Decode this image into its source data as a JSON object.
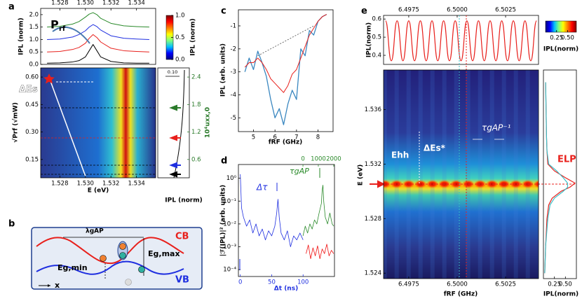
{
  "chart_data": [
    {
      "panel": "a",
      "type": "line",
      "ylabel": "IPL (norm)",
      "xlim": [
        1.5265,
        1.5355
      ],
      "xticks": [
        1.528,
        {
          "value": 1.53,
          "label": "1.530"
        },
        1.532,
        1.534
      ],
      "ylim": [
        0,
        2.25
      ],
      "yticks": [
        {
          "value": 0,
          "label": "0.0"
        },
        0.5,
        {
          "value": 1,
          "label": "1.0"
        },
        1.5,
        {
          "value": 2,
          "label": "2.0"
        }
      ],
      "x": [
        1.527,
        1.528,
        1.529,
        1.5295,
        1.53,
        1.5303,
        1.5306,
        1.5309,
        1.5312,
        1.532,
        1.533,
        1.534,
        1.535
      ],
      "series": [
        {
          "color": "#000000",
          "values": [
            0.05,
            0.06,
            0.1,
            0.15,
            0.3,
            0.55,
            0.8,
            0.55,
            0.3,
            0.12,
            0.06,
            0.05,
            0.05
          ]
        },
        {
          "color": "#e8201c",
          "values": [
            0.5,
            0.52,
            0.6,
            0.68,
            0.85,
            1.05,
            1.2,
            1.08,
            0.9,
            0.65,
            0.55,
            0.52,
            0.5
          ]
        },
        {
          "color": "#1f2fe0",
          "values": [
            1.0,
            1.02,
            1.1,
            1.2,
            1.35,
            1.5,
            1.6,
            1.52,
            1.38,
            1.15,
            1.05,
            1.02,
            1.0
          ]
        },
        {
          "color": "#2a8a2a",
          "values": [
            1.5,
            1.53,
            1.62,
            1.72,
            1.9,
            2.02,
            2.08,
            2.0,
            1.85,
            1.65,
            1.55,
            1.52,
            1.5
          ]
        }
      ],
      "annotation": "P",
      "annotation_sub": "rf"
    },
    {
      "panel": "a",
      "type": "heatmap",
      "xlabel": "E (eV)",
      "ylabel": "√Prf (√mW)",
      "y2label": "10⁴uxx,0",
      "xlim": [
        1.5265,
        1.5355
      ],
      "xticks": [
        1.528,
        {
          "value": 1.53,
          "label": "1.530"
        },
        1.532,
        1.534
      ],
      "ylim": [
        0.05,
        0.65
      ],
      "yticks": [
        0.15,
        {
          "value": 0.3,
          "label": "0.30"
        },
        0.45,
        {
          "value": 0.6,
          "label": "0.60"
        }
      ],
      "y2lim": [
        0.2,
        2.6
      ],
      "y2ticks": [
        0.6,
        1.2,
        1.8,
        2.4
      ],
      "y2color": "#2a7a2a",
      "colormap": [
        "#00007f",
        "#0000ff",
        "#00bfff",
        "#7fff7f",
        "#ffff00",
        "#ff7f00",
        "#ff0000",
        "#7f0000"
      ],
      "colorbar": {
        "label": "IPL (norm)",
        "lim": [
          0,
          1
        ],
        "ticks": [
          {
            "value": 0,
            "label": "0.0"
          },
          0.5,
          {
            "value": 1,
            "label": "1.0"
          }
        ]
      },
      "profile": {
        "xlabel": "IPL (norm)",
        "scale": {
          "value": 0.1,
          "label": "0.10"
        }
      },
      "annotation": "ΔEs"
    },
    {
      "panel": "b",
      "type": "diagram",
      "lambda": "λgAP",
      "cb": "CB",
      "vb": "VB",
      "egmax": "Eg,max",
      "egmin": "Eg,min",
      "x": "x"
    },
    {
      "panel": "c",
      "type": "line",
      "xlabel": "fRF (GHz)",
      "ylabel": "IPL (arb. units)",
      "xlim": [
        4.3,
        8.7
      ],
      "xticks": [
        5,
        6,
        7,
        8
      ],
      "ylim": [
        -5.6,
        -0.3
      ],
      "yticks": [
        -5,
        -4,
        -3,
        -2,
        -1
      ],
      "x": [
        4.6,
        4.8,
        5.0,
        5.2,
        5.4,
        5.6,
        5.8,
        6.0,
        6.2,
        6.4,
        6.6,
        6.8,
        7.0,
        7.2,
        7.4,
        7.6,
        7.8,
        8.0,
        8.2,
        8.4
      ],
      "series": [
        {
          "color": "#3a87c0",
          "values": [
            -3.0,
            -2.4,
            -2.9,
            -2.1,
            -2.6,
            -3.2,
            -4.2,
            -5.0,
            -4.6,
            -5.3,
            -4.4,
            -3.8,
            -4.2,
            -2.0,
            -2.3,
            -1.2,
            -1.4,
            -0.8,
            -0.6,
            -0.5
          ]
        },
        {
          "color": "#e8201c",
          "values": [
            -2.8,
            -2.6,
            -2.6,
            -2.4,
            -2.6,
            -2.9,
            -3.3,
            -3.5,
            -3.7,
            -3.9,
            -3.6,
            -3.1,
            -2.9,
            -2.4,
            -1.9,
            -1.4,
            -1.1,
            -0.8,
            -0.6,
            -0.5
          ]
        }
      ]
    },
    {
      "panel": "d",
      "type": "line",
      "log_y": true,
      "xlabel": "Δt (ns)",
      "ylabel": "|ℱ(IPL)|² (arb. units)",
      "xlim": [
        -3,
        150
      ],
      "xticks": [
        0,
        50,
        100
      ],
      "x2lim": [
        -4200,
        2050
      ],
      "x2ticks": [
        0,
        1000,
        2000
      ],
      "x2color": "#2a8a2a",
      "ylim": [
        5e-05,
        4
      ],
      "yticks": [
        {
          "value": 1,
          "label": "10⁰"
        },
        {
          "value": 0.1,
          "label": "10⁻¹"
        },
        {
          "value": 0.01,
          "label": "10⁻²"
        },
        {
          "value": 0.001,
          "label": "10⁻³"
        },
        {
          "value": 0.0001,
          "label": "10⁻⁴"
        }
      ],
      "series": [
        {
          "color": "#1f2fe0",
          "x": [
            0,
            2,
            5,
            10,
            15,
            20,
            25,
            30,
            35,
            40,
            45,
            50,
            55,
            58,
            60,
            62,
            65,
            70,
            75,
            80,
            85,
            90,
            95,
            100
          ],
          "values": [
            1.5,
            0.05,
            0.02,
            0.008,
            0.015,
            0.004,
            0.01,
            0.003,
            0.006,
            0.002,
            0.005,
            0.003,
            0.008,
            0.03,
            0.12,
            0.02,
            0.004,
            0.002,
            0.005,
            0.001,
            0.003,
            0.002,
            0.004,
            0.002
          ]
        },
        {
          "color": "#2a8a2a",
          "axis": "x2",
          "x": [
            0,
            150,
            300,
            450,
            600,
            750,
            900,
            1050,
            1200,
            1250,
            1300,
            1350,
            1450,
            1600,
            1750,
            1900,
            2000
          ],
          "values": [
            0.003,
            0.008,
            0.004,
            0.01,
            0.006,
            0.015,
            0.01,
            0.03,
            0.08,
            0.3,
            0.5,
            0.1,
            0.02,
            0.01,
            0.03,
            0.01,
            0.008
          ]
        },
        {
          "color": "#f01010",
          "axis": "x2",
          "x": [
            200,
            350,
            500,
            650,
            800,
            950,
            1100,
            1250,
            1400,
            1550,
            1700,
            1850,
            2000
          ],
          "values": [
            0.0005,
            0.0012,
            0.0003,
            0.0009,
            0.0004,
            0.0011,
            0.0003,
            0.0008,
            0.0005,
            0.0013,
            0.0004,
            0.0007,
            0.0005
          ]
        }
      ],
      "annotation": "Δτ",
      "annotation2": "τgAP"
    },
    {
      "panel": "e",
      "type": "heatmap",
      "xlabel": "fRF (GHz)",
      "ylabel": "E (eV)",
      "xlim": [
        6.4962,
        6.5042
      ],
      "xticks": [
        6.4975,
        {
          "value": 6.5,
          "label": "6.5000"
        },
        6.5025
      ],
      "ylim": [
        1.5236,
        1.5389
      ],
      "yticks": [
        1.524,
        1.528,
        1.532,
        1.536
      ],
      "top": {
        "ylabel": "IPL(norm)",
        "ylim": [
          0.35,
          0.62
        ],
        "yticks": [
          0.4,
          0.5,
          0.6
        ],
        "color": "#e8201c",
        "x": [
          6.4963,
          6.4966,
          6.4969,
          6.4972,
          6.4975,
          6.4978,
          6.4981,
          6.4984,
          6.4987,
          6.499,
          6.4993,
          6.4996,
          6.4999,
          6.5002,
          6.5005,
          6.5008,
          6.5011,
          6.5014,
          6.5017,
          6.502,
          6.5023,
          6.5026,
          6.5029,
          6.5032,
          6.5035,
          6.5038,
          6.5041
        ],
        "values": [
          0.59,
          0.37,
          0.59,
          0.37,
          0.59,
          0.37,
          0.59,
          0.37,
          0.59,
          0.37,
          0.59,
          0.37,
          0.59,
          0.37,
          0.59,
          0.37,
          0.59,
          0.37,
          0.59,
          0.37,
          0.59,
          0.37,
          0.59,
          0.37,
          0.59,
          0.37,
          0.59
        ]
      },
      "profile": {
        "xlabel": "IPL(norm)",
        "xlim": [
          0,
          0.75
        ],
        "xticks": [
          0.25,
          {
            "value": 0.5,
            "label": "0.50"
          }
        ],
        "E": [
          1.524,
          1.526,
          1.528,
          1.529,
          1.5295,
          1.53,
          1.5303,
          1.5306,
          1.531,
          1.5315,
          1.532,
          1.533,
          1.534,
          1.536,
          1.538
        ],
        "series": [
          {
            "color": "#e8201c",
            "values": [
              0.03,
              0.05,
              0.08,
              0.12,
              0.2,
              0.4,
              0.6,
              0.72,
              0.5,
              0.25,
              0.1,
              0.08,
              0.07,
              0.06,
              0.05
            ]
          },
          {
            "color": "#3cc0c8",
            "values": [
              0.03,
              0.05,
              0.1,
              0.15,
              0.25,
              0.45,
              0.55,
              0.55,
              0.45,
              0.3,
              0.12,
              0.08,
              0.07,
              0.06,
              0.05
            ]
          }
        ]
      },
      "colorbar": {
        "label": "IPL(norm)",
        "lim": [
          0,
          0.7
        ],
        "ticks": [
          0.25,
          {
            "value": 0.5,
            "label": "0.50"
          }
        ]
      },
      "annotations": {
        "ehh": "Ehh",
        "des": "ΔEs*",
        "tau": "τgAP⁻¹",
        "elp": "ELP"
      }
    }
  ]
}
